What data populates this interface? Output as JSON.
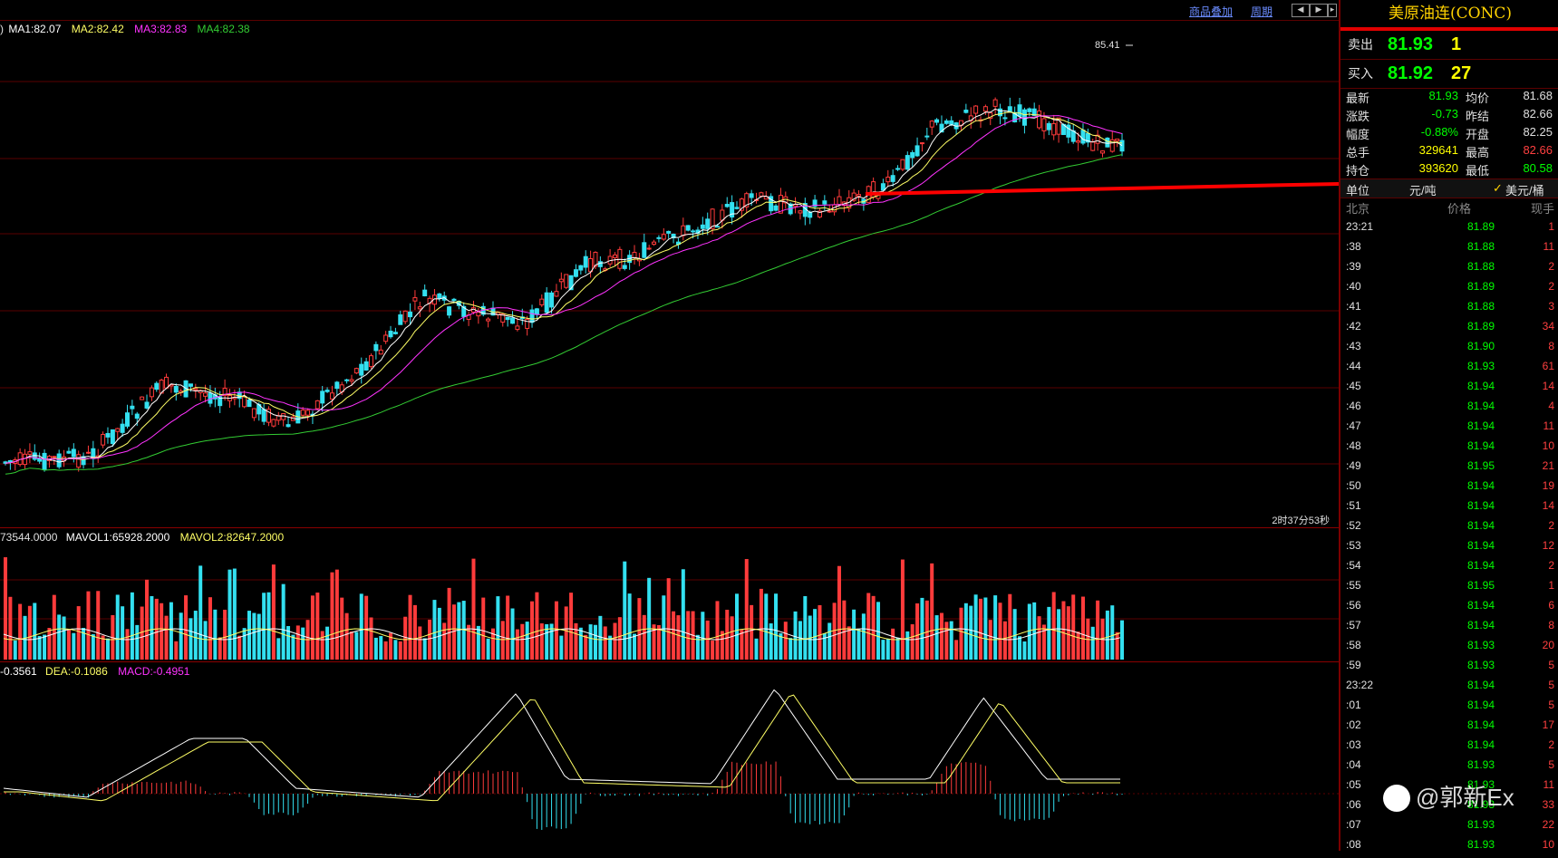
{
  "toolbar": {
    "overlay_label": "商品叠加",
    "period_label": "周期"
  },
  "legends": {
    "price": {
      "prefix": ")",
      "ma1": "MA1:82.07",
      "ma2": "MA2:82.42",
      "ma3": "MA3:82.83",
      "ma4": "MA4:82.38"
    },
    "volume": {
      "vol": "73544.0000",
      "mavol1": "MAVOL1:65928.2000",
      "mavol2": "MAVOL2:82647.2000"
    },
    "macd": {
      "diff": "-0.3561",
      "dea": "DEA:-0.1086",
      "macd": "MACD:-0.4951"
    }
  },
  "chart": {
    "high_label": "85.41",
    "timer": "2时37分53秒"
  },
  "colors": {
    "up": "#ff3b3b",
    "down": "#33e0f0",
    "ma1": "#ffffff",
    "ma2": "#ffff66",
    "ma3": "#ff33ff",
    "ma4": "#33cc33",
    "support_line": "#ff0000"
  },
  "side": {
    "title": "美原油连(CONC)",
    "sell": {
      "label": "卖出",
      "price": "81.93",
      "qty": "1"
    },
    "buy": {
      "label": "买入",
      "price": "81.92",
      "qty": "27"
    },
    "stats": [
      {
        "l1": "最新",
        "v1": "81.93",
        "l2": "均价",
        "v2": "81.68"
      },
      {
        "l1": "涨跌",
        "v1": "-0.73",
        "l2": "昨结",
        "v2": "82.66"
      },
      {
        "l1": "幅度",
        "v1": "-0.88%",
        "l2": "开盘",
        "v2": "82.25"
      },
      {
        "l1": "总手",
        "v1": "329641",
        "l2": "最高",
        "v2": "82.66"
      },
      {
        "l1": "持仓",
        "v1": "393620",
        "l2": "最低",
        "v2": "80.58"
      }
    ],
    "unit": {
      "label": "单位",
      "opt1": "元/吨",
      "opt2": "美元/桶"
    },
    "tick_header": {
      "time": "北京",
      "price": "价格",
      "qty": "现手"
    },
    "ticks": [
      {
        "t": "23:21",
        "p": "81.89",
        "v": "1"
      },
      {
        "t": ":38",
        "p": "81.88",
        "v": "11"
      },
      {
        "t": ":39",
        "p": "81.88",
        "v": "2"
      },
      {
        "t": ":40",
        "p": "81.89",
        "v": "2"
      },
      {
        "t": ":41",
        "p": "81.88",
        "v": "3"
      },
      {
        "t": ":42",
        "p": "81.89",
        "v": "34"
      },
      {
        "t": ":43",
        "p": "81.90",
        "v": "8"
      },
      {
        "t": ":44",
        "p": "81.93",
        "v": "61"
      },
      {
        "t": ":45",
        "p": "81.94",
        "v": "14"
      },
      {
        "t": ":46",
        "p": "81.94",
        "v": "4"
      },
      {
        "t": ":47",
        "p": "81.94",
        "v": "11"
      },
      {
        "t": ":48",
        "p": "81.94",
        "v": "10"
      },
      {
        "t": ":49",
        "p": "81.95",
        "v": "21"
      },
      {
        "t": ":50",
        "p": "81.94",
        "v": "19"
      },
      {
        "t": ":51",
        "p": "81.94",
        "v": "14"
      },
      {
        "t": ":52",
        "p": "81.94",
        "v": "2"
      },
      {
        "t": ":53",
        "p": "81.94",
        "v": "12"
      },
      {
        "t": ":54",
        "p": "81.94",
        "v": "2"
      },
      {
        "t": ":55",
        "p": "81.95",
        "v": "1"
      },
      {
        "t": ":56",
        "p": "81.94",
        "v": "6"
      },
      {
        "t": ":57",
        "p": "81.94",
        "v": "8"
      },
      {
        "t": ":58",
        "p": "81.93",
        "v": "20"
      },
      {
        "t": ":59",
        "p": "81.93",
        "v": "5"
      },
      {
        "t": "23:22",
        "p": "81.94",
        "v": "5"
      },
      {
        "t": ":01",
        "p": "81.94",
        "v": "5"
      },
      {
        "t": ":02",
        "p": "81.94",
        "v": "17"
      },
      {
        "t": ":03",
        "p": "81.94",
        "v": "2"
      },
      {
        "t": ":04",
        "p": "81.93",
        "v": "5"
      },
      {
        "t": ":05",
        "p": "81.93",
        "v": "11"
      },
      {
        "t": ":06",
        "p": "81.93",
        "v": "33"
      },
      {
        "t": ":07",
        "p": "81.93",
        "v": "22"
      },
      {
        "t": ":08",
        "p": "81.93",
        "v": "10"
      }
    ]
  },
  "watermark": "@郭新Ex"
}
